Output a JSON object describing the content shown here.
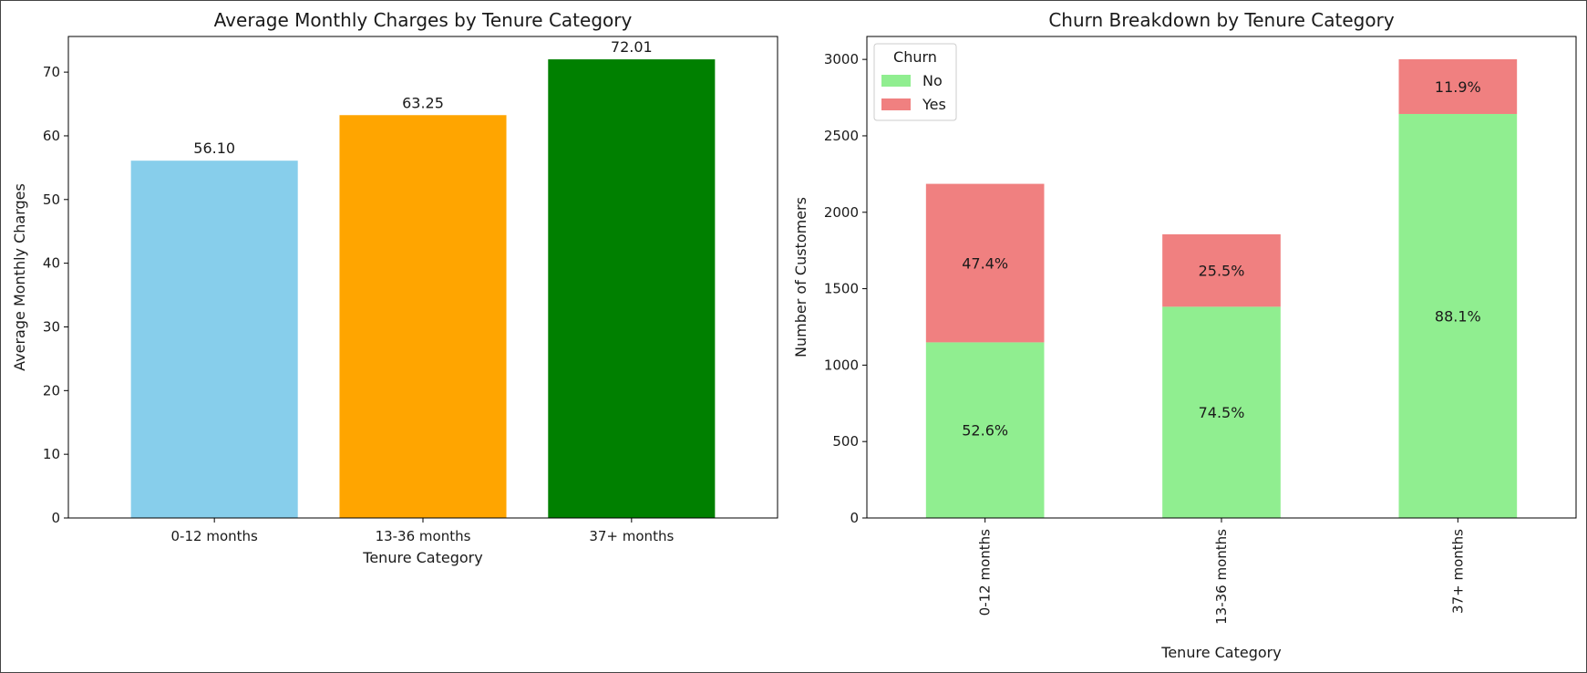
{
  "chart_data": [
    {
      "type": "bar",
      "title": "Average Monthly Charges by Tenure Category",
      "xlabel": "Tenure Category",
      "ylabel": "Average Monthly Charges",
      "categories": [
        "0-12 months",
        "13-36 months",
        "37+ months"
      ],
      "values": [
        56.1,
        63.25,
        72.01
      ],
      "value_labels": [
        "56.10",
        "63.25",
        "72.01"
      ],
      "colors": [
        "#87ceeb",
        "#ffa500",
        "#008000"
      ],
      "ylim": [
        0,
        75.6
      ],
      "yticks": [
        0,
        10,
        20,
        30,
        40,
        50,
        60,
        70
      ],
      "grid": false
    },
    {
      "type": "bar",
      "stacked": true,
      "title": "Churn Breakdown by Tenure Category",
      "xlabel": "Tenure Category",
      "ylabel": "Number of Customers",
      "categories": [
        "0-12 months",
        "13-36 months",
        "37+ months"
      ],
      "legend": {
        "title": "Churn",
        "position": "upper-left"
      },
      "series": [
        {
          "name": "No",
          "color": "#90ee90",
          "values": [
            1149,
            1382,
            2643
          ],
          "labels": [
            "52.6%",
            "74.5%",
            "88.1%"
          ]
        },
        {
          "name": "Yes",
          "color": "#f08080",
          "values": [
            1037,
            474,
            358
          ],
          "labels": [
            "47.4%",
            "25.5%",
            "11.9%"
          ]
        }
      ],
      "ylim": [
        0,
        3150
      ],
      "yticks": [
        0,
        500,
        1000,
        1500,
        2000,
        2500,
        3000
      ],
      "xtick_rotation": 90,
      "grid": false
    }
  ]
}
